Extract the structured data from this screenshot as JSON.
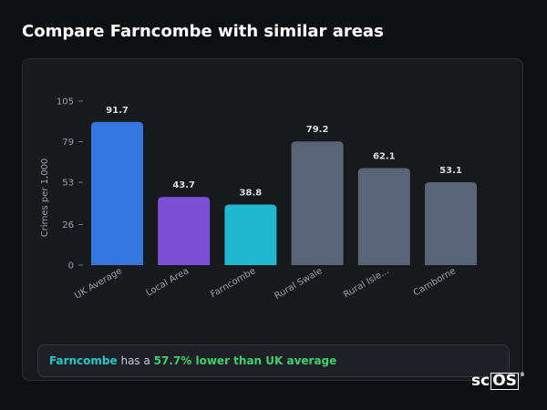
{
  "page": {
    "title": "Compare Farncombe with similar areas"
  },
  "chart_data": {
    "type": "bar",
    "title": "",
    "ylabel": "Crimes per 1,000",
    "xlabel": "",
    "ylim": [
      0,
      105
    ],
    "yticks": [
      0,
      26,
      53,
      79,
      105
    ],
    "categories": [
      "UK Average",
      "Local Area",
      "Farncombe",
      "Rural Swale",
      "Rural Isle...",
      "Camborne"
    ],
    "values": [
      91.7,
      43.7,
      38.8,
      79.2,
      62.1,
      53.1
    ],
    "value_labels": [
      "91.7",
      "43.7",
      "38.8",
      "79.2",
      "62.1",
      "53.1"
    ],
    "colors": [
      "#3477e0",
      "#7b4fd6",
      "#1fb8cf",
      "#5a6477",
      "#5a6477",
      "#5a6477"
    ],
    "grid": false,
    "legend": "none"
  },
  "summary": {
    "area": "Farncombe",
    "middle": " has a ",
    "comparison": "57.7% lower than UK average"
  },
  "logo": {
    "prefix": "sc",
    "boxed": "OS",
    "mark": "®"
  }
}
